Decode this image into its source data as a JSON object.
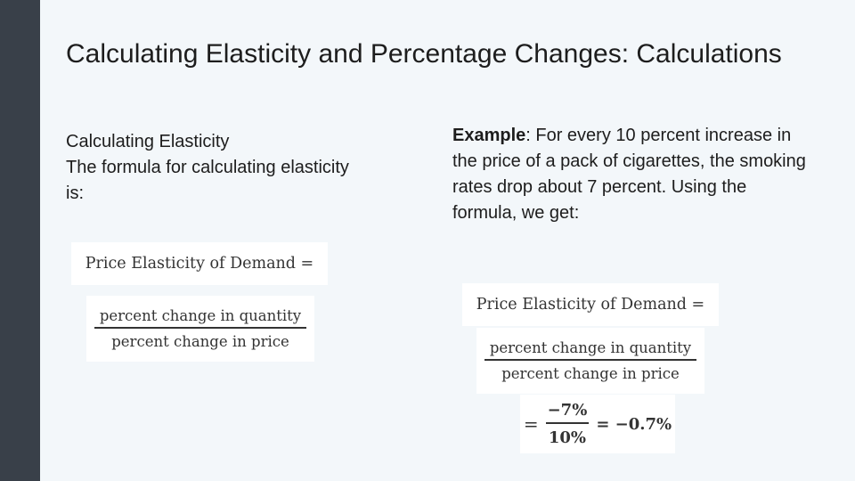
{
  "slide": {
    "title": "Calculating Elasticity and Percentage Changes: Calculations",
    "left": {
      "heading": "Calculating Elasticity",
      "text": "The formula for calculating elasticity is:"
    },
    "right": {
      "example_label": "Example",
      "example_text": ": For every 10 percent increase in the price of a pack of cigarettes, the smoking rates drop about 7 percent. Using the formula, we get:"
    }
  },
  "formula": {
    "label": "Price Elasticity of Demand =",
    "numerator": "percent change in quantity",
    "denominator": "percent change in price"
  },
  "calculation": {
    "equals": "=",
    "numerator": "−7%",
    "denominator": "10%",
    "result": "= −0.7%"
  },
  "colors": {
    "sidebar": "#394049",
    "background": "#f3f7fa",
    "text": "#1d1d1d"
  }
}
